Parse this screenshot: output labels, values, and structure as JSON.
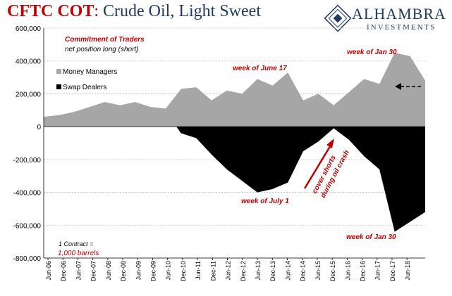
{
  "header": {
    "title_part1": "CFTC COT",
    "title_sep": ": ",
    "title_part2": "Crude Oil, Light Sweet"
  },
  "logo": {
    "name": "ALHAMBRA",
    "sub": "INVESTMENTS"
  },
  "colors": {
    "money_managers": "#a6a6a6",
    "swap_dealers": "#000000",
    "annotation": "#c00000",
    "title_red": "#c00000",
    "title_navy": "#1f3a5f"
  },
  "chart_data": {
    "type": "area",
    "title": "CFTC COT: Crude Oil, Light Sweet",
    "ylim": [
      -800000,
      600000
    ],
    "grid": true,
    "legend_placement": "top-left",
    "y_ticks": [
      {
        "value": 600000,
        "label": "600,000"
      },
      {
        "value": 400000,
        "label": "400,000"
      },
      {
        "value": 200000,
        "label": "200,000"
      },
      {
        "value": 0,
        "label": "0"
      },
      {
        "value": -200000,
        "label": "-200,000"
      },
      {
        "value": -400000,
        "label": "-400,000"
      },
      {
        "value": -600000,
        "label": "-600,000"
      },
      {
        "value": -800000,
        "label": "-800,000"
      }
    ],
    "x_tick_labels": [
      "Jun-06",
      "Dec-06",
      "Jun-07",
      "Dec-07",
      "Jun-08",
      "Dec-08",
      "Jun-09",
      "Dec-09",
      "Jun-10",
      "Dec-10",
      "Jun-11",
      "Dec-11",
      "Jun-12",
      "Dec-12",
      "Jun-13",
      "Dec-13",
      "Jun-14",
      "Dec-14",
      "Jun-15",
      "Dec-15",
      "Jun-16",
      "Dec-16",
      "Jun-17",
      "Dec-17",
      "Jun-18"
    ],
    "x": [
      "Jun-06",
      "Dec-06",
      "Jun-07",
      "Dec-07",
      "Jun-08",
      "Dec-08",
      "Jun-09",
      "Dec-09",
      "Jun-10",
      "Dec-10",
      "Jun-11",
      "Dec-11",
      "Jun-12",
      "Dec-12",
      "Jun-13",
      "Dec-13",
      "Jun-14",
      "Dec-14",
      "Jun-15",
      "Dec-15",
      "Jun-16",
      "Dec-16",
      "Jun-17",
      "Dec-17",
      "Jun-18",
      "Oct-18"
    ],
    "series": [
      {
        "name": "Money Managers",
        "values": [
          60000,
          70000,
          90000,
          120000,
          150000,
          130000,
          150000,
          120000,
          110000,
          230000,
          240000,
          160000,
          220000,
          200000,
          290000,
          250000,
          330000,
          160000,
          200000,
          130000,
          210000,
          290000,
          260000,
          450000,
          430000,
          280000
        ]
      },
      {
        "name": "Swap Dealers",
        "values": [
          40000,
          60000,
          80000,
          100000,
          120000,
          110000,
          130000,
          110000,
          90000,
          -40000,
          -70000,
          -170000,
          -260000,
          -330000,
          -400000,
          -380000,
          -340000,
          -150000,
          -90000,
          -10000,
          -80000,
          -180000,
          -260000,
          -640000,
          -580000,
          -520000
        ]
      }
    ],
    "annotations": {
      "cot_title": "Commitment of Traders",
      "cot_subtitle": "net position long (short)",
      "week_june17": "week of June 17",
      "week_jan30_top": "week of Jan 30",
      "week_july1": "week of July 1",
      "week_jan30_bottom": "week of Jan 30",
      "cover_shorts_1": "cover shorts",
      "cover_shorts_2": "during oil crash",
      "contract_note": "1 Contract =",
      "contract_value": "1,000 barrels"
    }
  }
}
